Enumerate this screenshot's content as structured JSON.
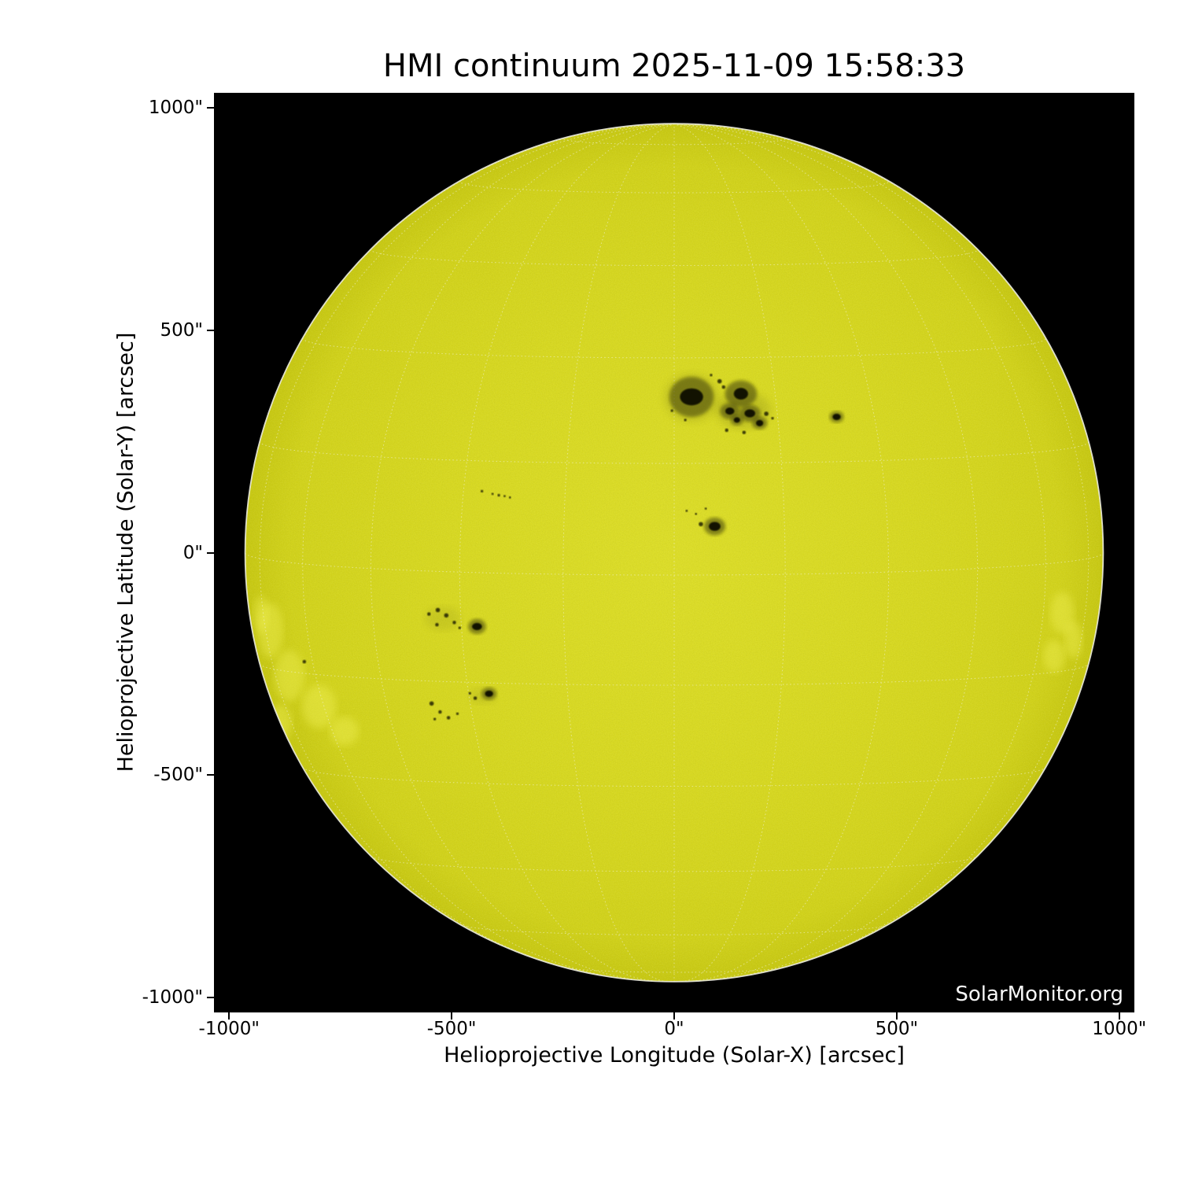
{
  "watermark": "SolarMonitor.org",
  "chart_data": {
    "type": "heatmap",
    "title": "HMI continuum 2025-11-09 15:58:33",
    "instrument": "HMI continuum",
    "timestamp": "2025-11-09 15:58:33",
    "xlabel": "Helioprojective Longitude (Solar-X) [arcsec]",
    "ylabel": "Helioprojective Latitude (Solar-Y) [arcsec]",
    "xlim": [
      -1034,
      1034
    ],
    "ylim": [
      -1034,
      1034
    ],
    "xtick_values": [
      -1000,
      -500,
      0,
      500,
      1000
    ],
    "xtick_labels": [
      "-1000\"",
      "-500\"",
      "0\"",
      "500\"",
      "1000\""
    ],
    "ytick_values": [
      1000,
      500,
      0,
      -500,
      -1000
    ],
    "ytick_labels": [
      "1000\"",
      "500\"",
      "0\"",
      "-500\"",
      "-1000\""
    ],
    "grid_on": true,
    "legend": "none",
    "solar_disk": {
      "center_arcsec": [
        0,
        0
      ],
      "radius_arcsec": 964,
      "disk_center_color": "#dcdd26",
      "disk_color": "#d6d71e",
      "disk_edge_color": "#c6c710",
      "limb_color": "#ebebdc",
      "space_color": "#000000"
    },
    "heliographic_grid": {
      "spacing_deg": 15,
      "b0_deg": 3,
      "color": "#f2f2da",
      "style": "dotted"
    },
    "colors": {
      "penumbra": "#4d4d07",
      "umbra": "#0a0a00",
      "pore": "#161602",
      "faculae": "#f6f65e"
    },
    "sunspots": [
      {
        "x": 39,
        "y": 350,
        "pen": [
          50,
          45
        ],
        "umb": [
          26,
          19
        ]
      },
      {
        "x": 150,
        "y": 357,
        "pen": [
          36,
          30
        ],
        "umb": [
          16,
          13
        ]
      },
      {
        "x": 125,
        "y": 318,
        "pen": [
          22,
          18
        ],
        "umb": [
          10,
          8
        ]
      },
      {
        "x": 170,
        "y": 313,
        "pen": [
          24,
          19
        ],
        "umb": [
          12,
          9
        ]
      },
      {
        "x": 192,
        "y": 291,
        "pen": [
          17,
          14
        ],
        "umb": [
          8,
          7
        ]
      },
      {
        "x": 141,
        "y": 298,
        "pen": [
          14,
          12
        ],
        "umb": [
          7,
          6
        ]
      },
      {
        "x": 365,
        "y": 305,
        "pen": [
          16,
          13
        ],
        "umb": [
          9,
          7
        ]
      },
      {
        "x": 91,
        "y": 59,
        "pen": [
          24,
          20
        ],
        "umb": [
          13,
          10
        ]
      },
      {
        "x": -443,
        "y": -166,
        "pen": [
          20,
          17
        ],
        "umb": [
          11,
          8
        ]
      },
      {
        "x": -416,
        "y": -317,
        "pen": [
          17,
          14
        ],
        "umb": [
          9,
          7
        ]
      }
    ],
    "pores": [
      [
        102,
        385,
        5
      ],
      [
        111,
        372,
        4
      ],
      [
        118,
        275,
        4
      ],
      [
        157,
        270,
        4
      ],
      [
        207,
        312,
        5
      ],
      [
        221,
        302,
        3
      ],
      [
        83,
        399,
        3
      ],
      [
        25,
        298,
        3
      ],
      [
        -5,
        319,
        3
      ],
      [
        60,
        64,
        5
      ],
      [
        28,
        94,
        2.5
      ],
      [
        49,
        87,
        2.5
      ],
      [
        71,
        99,
        2.5
      ],
      [
        -432,
        138,
        3
      ],
      [
        -408,
        132,
        2.5
      ],
      [
        -394,
        129,
        3
      ],
      [
        -381,
        127,
        2.5
      ],
      [
        -369,
        124,
        2.5
      ],
      [
        -551,
        -138,
        4
      ],
      [
        -531,
        -129,
        5
      ],
      [
        -512,
        -141,
        5
      ],
      [
        -494,
        -157,
        4
      ],
      [
        -533,
        -162,
        4
      ],
      [
        -482,
        -169,
        3
      ],
      [
        -447,
        -327,
        4
      ],
      [
        -459,
        -316,
        3
      ],
      [
        -545,
        -339,
        5
      ],
      [
        -526,
        -358,
        4
      ],
      [
        -507,
        -371,
        4
      ],
      [
        -487,
        -362,
        3
      ],
      [
        -538,
        -374,
        3
      ],
      [
        -831,
        -245,
        4
      ]
    ],
    "shades": [
      [
        39,
        348,
        62,
        54,
        0.14
      ],
      [
        155,
        320,
        62,
        42,
        0.16
      ],
      [
        -520,
        -148,
        40,
        27,
        0.1
      ],
      [
        -430,
        -322,
        30,
        18,
        0.1
      ]
    ],
    "faculae": [
      [
        -907,
        -175,
        28,
        62
      ],
      [
        -865,
        -277,
        33,
        58
      ],
      [
        -798,
        -346,
        38,
        48
      ],
      [
        -886,
        -383,
        27,
        42
      ],
      [
        -741,
        -401,
        32,
        32
      ],
      [
        -928,
        -139,
        17,
        42
      ],
      [
        872,
        -136,
        27,
        47
      ],
      [
        897,
        -196,
        20,
        42
      ],
      [
        854,
        -233,
        24,
        37
      ]
    ]
  }
}
